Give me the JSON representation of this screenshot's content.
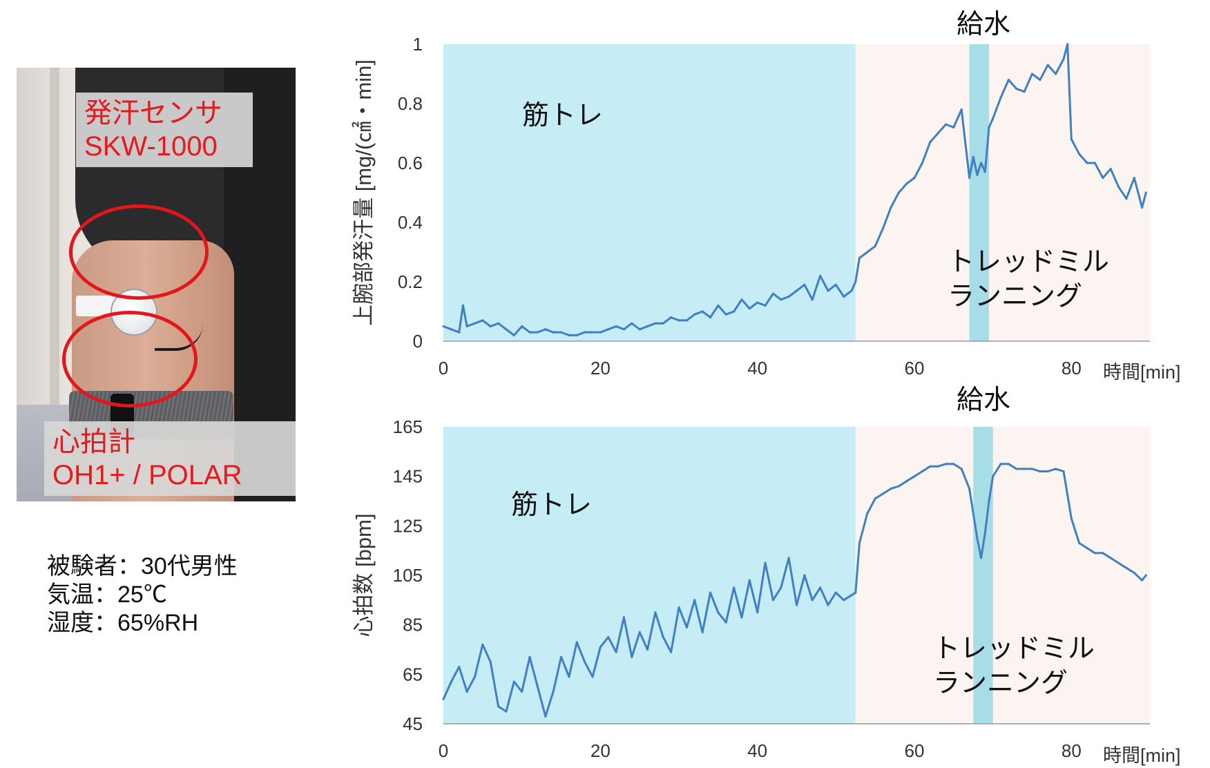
{
  "photo": {
    "sensor_callout": [
      "発汗センサ",
      "SKW-1000"
    ],
    "hr_callout": [
      "心拍計",
      "OH1+ / POLAR"
    ]
  },
  "subject_info": [
    "被験者：30代男性",
    "気温：25℃",
    "湿度：65%RH"
  ],
  "colors": {
    "line": "#3f7fc4",
    "muscle_bg": "#c6ecf6",
    "treadmill_bg": "#fbf4f1",
    "water_bg": "#a7dde6",
    "callout_text": "#e8181c",
    "ellipse": "#e4161b"
  },
  "chart_data": [
    {
      "type": "line",
      "ylabel": "上腕部発汗量 [mg/(㎠・min]",
      "xlabel": "時間[min]",
      "xlim": [
        0,
        90
      ],
      "ylim": [
        0,
        1
      ],
      "x_ticks": [
        0,
        20,
        40,
        60,
        80
      ],
      "y_ticks": [
        0,
        0.2,
        0.4,
        0.6,
        0.8,
        1
      ],
      "y_tick_labels": [
        "0",
        "0.2",
        "0.4",
        "0.6",
        "0.8",
        "1"
      ],
      "regions": [
        {
          "label": "筋トレ",
          "x": [
            0,
            52.5
          ],
          "kind": "muscle"
        },
        {
          "label": "トレッドミル\nランニング",
          "x": [
            52.5,
            90
          ],
          "kind": "treadmill"
        },
        {
          "label": "給水",
          "x": [
            67,
            69.5
          ],
          "kind": "water"
        }
      ],
      "series": [
        {
          "x": [
            0,
            1,
            2,
            2.5,
            3,
            4,
            5,
            6,
            7,
            8,
            9,
            10,
            11,
            12,
            13,
            14,
            15,
            16,
            17,
            18,
            19,
            20,
            21,
            22,
            23,
            24,
            25,
            26,
            27,
            28,
            29,
            30,
            31,
            32,
            33,
            34,
            35,
            36,
            37,
            38,
            39,
            40,
            41,
            42,
            43,
            44,
            45,
            46,
            47,
            48,
            49,
            50,
            51,
            52,
            52.5,
            53,
            54,
            55,
            56,
            57,
            58,
            59,
            60,
            61,
            62,
            63,
            64,
            65,
            66,
            67,
            67.5,
            68,
            68.5,
            69,
            69.5,
            70,
            71,
            72,
            73,
            74,
            75,
            76,
            77,
            78,
            79,
            79.5,
            80,
            81,
            82,
            83,
            84,
            85,
            86,
            87,
            88,
            89,
            89.5
          ],
          "y": [
            0.05,
            0.04,
            0.03,
            0.12,
            0.05,
            0.06,
            0.07,
            0.05,
            0.06,
            0.04,
            0.02,
            0.05,
            0.03,
            0.03,
            0.04,
            0.03,
            0.03,
            0.02,
            0.02,
            0.03,
            0.03,
            0.03,
            0.04,
            0.05,
            0.04,
            0.06,
            0.04,
            0.05,
            0.06,
            0.06,
            0.08,
            0.07,
            0.07,
            0.09,
            0.1,
            0.08,
            0.12,
            0.09,
            0.1,
            0.14,
            0.11,
            0.13,
            0.12,
            0.16,
            0.14,
            0.15,
            0.17,
            0.19,
            0.14,
            0.22,
            0.17,
            0.19,
            0.15,
            0.17,
            0.2,
            0.28,
            0.3,
            0.32,
            0.38,
            0.45,
            0.5,
            0.53,
            0.55,
            0.6,
            0.67,
            0.7,
            0.73,
            0.72,
            0.78,
            0.55,
            0.62,
            0.56,
            0.6,
            0.57,
            0.72,
            0.75,
            0.82,
            0.88,
            0.85,
            0.84,
            0.9,
            0.88,
            0.93,
            0.9,
            0.95,
            1.0,
            0.68,
            0.63,
            0.6,
            0.6,
            0.55,
            0.58,
            0.52,
            0.48,
            0.55,
            0.45,
            0.5
          ]
        }
      ]
    },
    {
      "type": "line",
      "ylabel": "心拍数 [bpm]",
      "xlabel": "時間[min]",
      "xlim": [
        0,
        90
      ],
      "ylim": [
        45,
        165
      ],
      "x_ticks": [
        0,
        20,
        40,
        60,
        80
      ],
      "y_ticks": [
        45,
        65,
        85,
        105,
        125,
        145,
        165
      ],
      "y_tick_labels": [
        "45",
        "65",
        "85",
        "105",
        "125",
        "145",
        "165"
      ],
      "regions": [
        {
          "label": "筋トレ",
          "x": [
            0,
            52.5
          ],
          "kind": "muscle"
        },
        {
          "label": "トレッドミル\nランニング",
          "x": [
            52.5,
            90
          ],
          "kind": "treadmill"
        },
        {
          "label": "給水",
          "x": [
            67.5,
            70
          ],
          "kind": "water"
        }
      ],
      "series": [
        {
          "x": [
            0,
            1,
            2,
            3,
            4,
            5,
            6,
            7,
            8,
            9,
            10,
            11,
            12,
            13,
            14,
            15,
            16,
            17,
            18,
            19,
            20,
            21,
            22,
            23,
            24,
            25,
            26,
            27,
            28,
            29,
            30,
            31,
            32,
            33,
            34,
            35,
            36,
            37,
            38,
            39,
            40,
            41,
            42,
            43,
            44,
            45,
            46,
            47,
            48,
            49,
            50,
            51,
            52,
            52.5,
            53,
            54,
            55,
            56,
            57,
            58,
            59,
            60,
            61,
            62,
            63,
            64,
            65,
            66,
            67,
            68,
            68.5,
            69,
            69.5,
            70,
            71,
            72,
            73,
            74,
            75,
            76,
            77,
            78,
            79,
            80,
            81,
            82,
            83,
            84,
            85,
            86,
            87,
            88,
            89,
            89.5
          ],
          "y": [
            55,
            62,
            68,
            58,
            64,
            77,
            70,
            52,
            50,
            62,
            58,
            72,
            60,
            48,
            58,
            72,
            64,
            78,
            70,
            64,
            76,
            80,
            74,
            88,
            72,
            82,
            75,
            90,
            80,
            74,
            92,
            84,
            95,
            82,
            98,
            90,
            86,
            100,
            88,
            103,
            90,
            110,
            95,
            100,
            112,
            93,
            105,
            95,
            100,
            93,
            98,
            95,
            97,
            98,
            118,
            130,
            136,
            138,
            140,
            141,
            143,
            145,
            147,
            149,
            149,
            150,
            150,
            148,
            140,
            120,
            112,
            122,
            135,
            145,
            150,
            150,
            148,
            148,
            148,
            147,
            147,
            148,
            147,
            128,
            118,
            116,
            114,
            114,
            112,
            110,
            108,
            106,
            103,
            105
          ]
        }
      ]
    }
  ]
}
